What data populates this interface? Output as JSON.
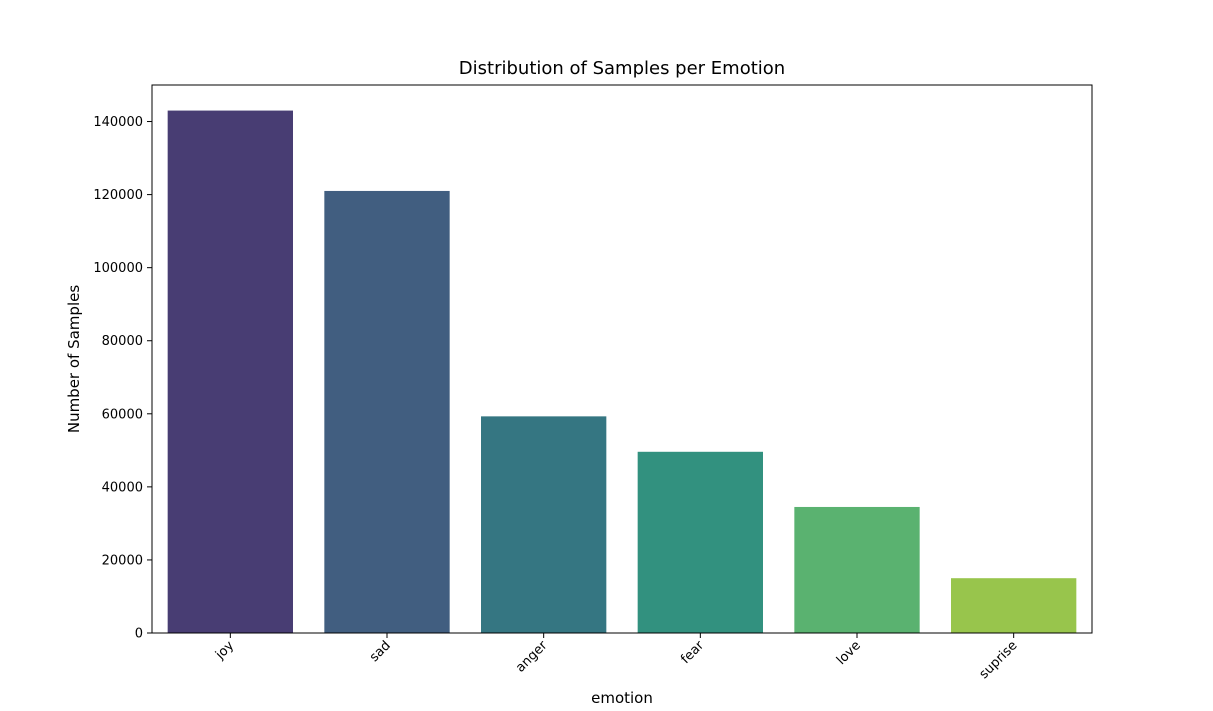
{
  "chart_data": {
    "type": "bar",
    "title": "Distribution of Samples per Emotion",
    "xlabel": "emotion",
    "ylabel": "Number of Samples",
    "categories": [
      "joy",
      "sad",
      "anger",
      "fear",
      "love",
      "suprise"
    ],
    "values": [
      143000,
      121000,
      59300,
      49600,
      34500,
      15000
    ],
    "colors": [
      "#483d73",
      "#415e80",
      "#357682",
      "#32917f",
      "#5ab270",
      "#98c54c"
    ],
    "ylim": [
      0,
      150000
    ],
    "yticks": [
      0,
      20000,
      40000,
      60000,
      80000,
      100000,
      120000,
      140000
    ],
    "grid": false,
    "legend": "none"
  }
}
